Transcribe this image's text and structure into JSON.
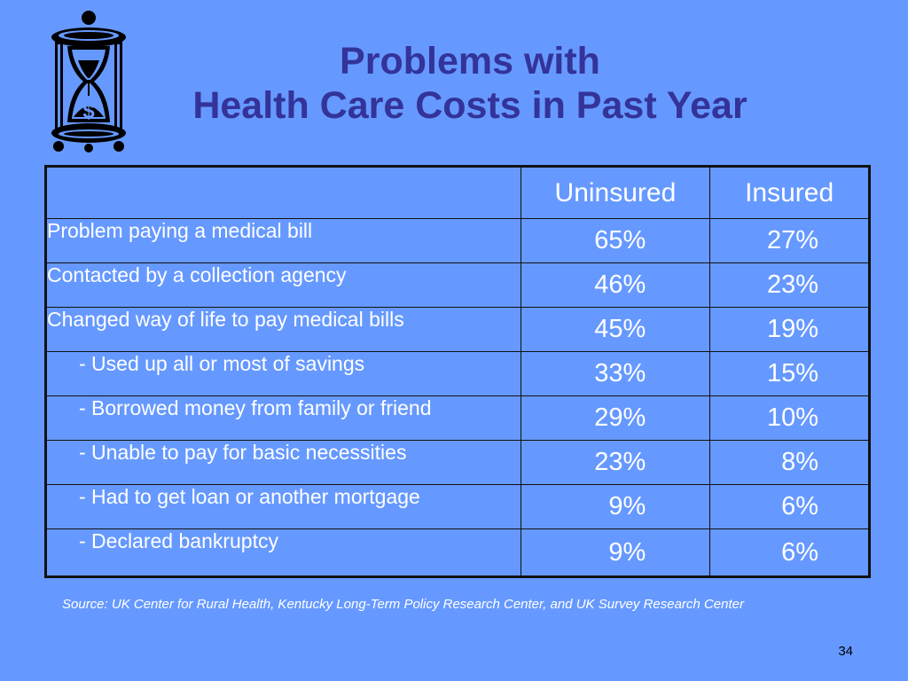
{
  "slide": {
    "title_line1": "Problems with",
    "title_line2": "Health Care Costs in Past Year",
    "logo_symbol": "$",
    "logo_icon": "hourglass-dollar-icon"
  },
  "table": {
    "headers": [
      "",
      "Uninsured",
      "Insured"
    ],
    "rows": [
      {
        "label": "Problem paying a medical bill",
        "uninsured": "65%",
        "insured": "27%",
        "indent": false
      },
      {
        "label": "Contacted by a collection agency",
        "uninsured": "46%",
        "insured": "23%",
        "indent": false
      },
      {
        "label": "Changed way of life to pay medical bills",
        "uninsured": "45%",
        "insured": "19%",
        "indent": false
      },
      {
        "label": "- Used up all or most of savings",
        "uninsured": "33%",
        "insured": "15%",
        "indent": true
      },
      {
        "label": "- Borrowed money from family or friend",
        "uninsured": "29%",
        "insured": "10%",
        "indent": true
      },
      {
        "label": "- Unable to pay for basic necessities",
        "uninsured": "23%",
        "insured": "8%",
        "indent": true
      },
      {
        "label": "- Had to get loan or another mortgage",
        "uninsured": "9%",
        "insured": "6%",
        "indent": true
      },
      {
        "label": "- Declared bankruptcy",
        "uninsured": "9%",
        "insured": "6%",
        "indent": true
      }
    ]
  },
  "source_note": "Source: UK Center for Rural Health, Kentucky Long-Term Policy Research Center, and UK Survey Research Center",
  "page_number": "34",
  "colors": {
    "background": "#6699ff",
    "title": "#333399",
    "text": "#ffffff",
    "border": "#111111"
  }
}
